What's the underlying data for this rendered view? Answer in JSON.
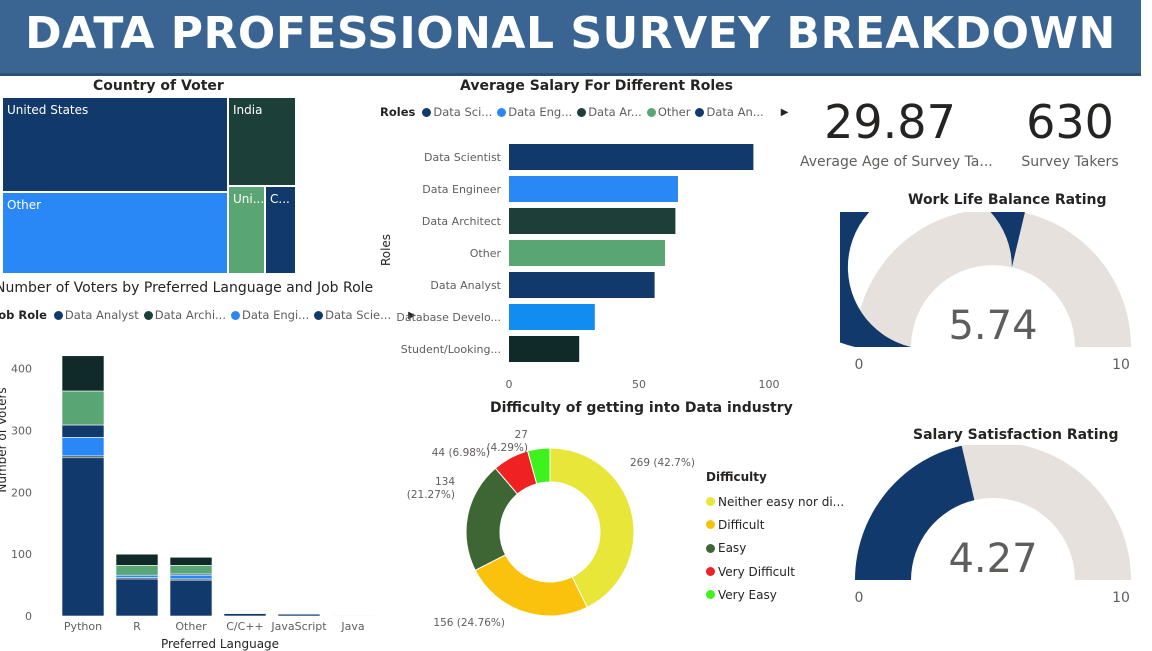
{
  "header": {
    "title": "DATA PROFESSIONAL SURVEY BREAKDOWN"
  },
  "colors": {
    "navy": "#12396b",
    "blue": "#2988f6",
    "darkgreen": "#1c3f3a",
    "green": "#5aa574",
    "darkest": "#0f2a28",
    "gauge_bg": "#e6e1dc",
    "yellow": "#e8e639",
    "orange": "#fbc20d",
    "olive": "#3d6634",
    "red": "#ef2121",
    "lime": "#3ef21d"
  },
  "treemap": {
    "title": "Country of Voter",
    "cells": [
      {
        "label": "United States",
        "color": "#12396b"
      },
      {
        "label": "India",
        "color": "#1c3f3a"
      },
      {
        "label": "Other",
        "color": "#2988f6"
      },
      {
        "label": "Uni...",
        "color": "#5aa574"
      },
      {
        "label": "C...",
        "color": "#12396b"
      }
    ]
  },
  "stacked_bar": {
    "title": "Number of Voters by Preferred Language and Job Role",
    "legend_title": "Job Role",
    "legend_items": [
      {
        "label": "Data Analyst",
        "color": "#12396b"
      },
      {
        "label": "Data Archi...",
        "color": "#1c3f3a"
      },
      {
        "label": "Data Engi...",
        "color": "#2988f6"
      },
      {
        "label": "Data Scie...",
        "color": "#12396b"
      }
    ],
    "arrow": "▶",
    "x_title": "Preferred Language",
    "y_title": "Number of Voters"
  },
  "salary_bar": {
    "title": "Average Salary For Different Roles",
    "legend_title": "Roles",
    "legend_items": [
      {
        "label": "Data Sci...",
        "color": "#12396b"
      },
      {
        "label": "Data Eng...",
        "color": "#2988f6"
      },
      {
        "label": "Data Ar...",
        "color": "#1c3f3a"
      },
      {
        "label": "Other",
        "color": "#5aa574"
      },
      {
        "label": "Data An...",
        "color": "#12396b"
      }
    ],
    "arrow": "▶",
    "y_title": "Roles"
  },
  "kpis": {
    "avg_age": {
      "value": "29.87",
      "label": "Average Age of Survey Ta..."
    },
    "takers": {
      "value": "630",
      "label": "Survey Takers"
    }
  },
  "gauges": {
    "work_life": {
      "title": "Work Life Balance Rating",
      "value_text": "5.74",
      "min_label": "0",
      "max_label": "10",
      "value": 5.74,
      "max": 10
    },
    "salary_sat": {
      "title": "Salary Satisfaction Rating",
      "value_text": "4.27",
      "min_label": "0",
      "max_label": "10",
      "value": 4.27,
      "max": 10
    }
  },
  "donut": {
    "title": "Difficulty of getting into Data industry",
    "legend_title": "Difficulty"
  },
  "chart_data": [
    {
      "type": "bar",
      "orientation": "vertical-stacked",
      "title": "Number of Voters by Preferred Language and Job Role",
      "xlabel": "Preferred Language",
      "ylabel": "Number of Voters",
      "categories": [
        "Python",
        "R",
        "Other",
        "C/C++",
        "JavaScript",
        "Java"
      ],
      "ylim": [
        0,
        440
      ],
      "yticks": [
        0,
        100,
        200,
        300,
        400
      ],
      "series": [
        {
          "name": "Data Analyst",
          "color": "#12396b",
          "values": [
            256,
            60,
            58,
            4,
            3,
            1
          ]
        },
        {
          "name": "Data Archi...",
          "color": "#1c3f3a",
          "values": [
            3,
            2,
            2,
            1,
            1,
            0
          ]
        },
        {
          "name": "Data Engi...",
          "color": "#2988f6",
          "values": [
            30,
            4,
            6,
            1,
            1,
            0
          ]
        },
        {
          "name": "Data Scie...",
          "color": "#12396b",
          "values": [
            20,
            0,
            2,
            1,
            1,
            1
          ]
        },
        {
          "color": "#5aa574",
          "values": [
            55,
            16,
            14,
            1,
            0,
            0
          ]
        },
        {
          "color": "#0f2a28",
          "values": [
            57,
            18,
            13,
            1,
            1,
            0
          ]
        }
      ]
    },
    {
      "type": "bar",
      "orientation": "horizontal",
      "title": "Average Salary For Different Roles",
      "ylabel": "Roles",
      "categories": [
        "Data Scientist",
        "Data Engineer",
        "Data Architect",
        "Other",
        "Data Analyst",
        "Database Develo...",
        "Student/Looking..."
      ],
      "values": [
        94,
        65,
        64,
        60,
        56,
        33,
        27
      ],
      "colors": [
        "#12396b",
        "#2988f6",
        "#1c3f3a",
        "#5aa574",
        "#12396b",
        "#118df2",
        "#0f2a28"
      ],
      "xlim": [
        0,
        100
      ],
      "xticks": [
        0,
        50,
        100
      ]
    },
    {
      "type": "pie",
      "style": "donut",
      "title": "Difficulty of getting into Data industry",
      "legend_title": "Difficulty",
      "slices": [
        {
          "name": "Neither easy nor di...",
          "value": 269,
          "label": "269 (42.7%)",
          "color": "#e8e639"
        },
        {
          "name": "Difficult",
          "value": 156,
          "label": "156 (24.76%)",
          "color": "#fbc20d"
        },
        {
          "name": "Easy",
          "value": 134,
          "label": "134\n(21.27%)",
          "color": "#3d6634"
        },
        {
          "name": "Very Difficult",
          "value": 44,
          "label": "44 (6.98%)",
          "color": "#ef2121"
        },
        {
          "name": "Very Easy",
          "value": 27,
          "label": "27\n(4.29%)",
          "color": "#3ef21d"
        }
      ]
    }
  ]
}
